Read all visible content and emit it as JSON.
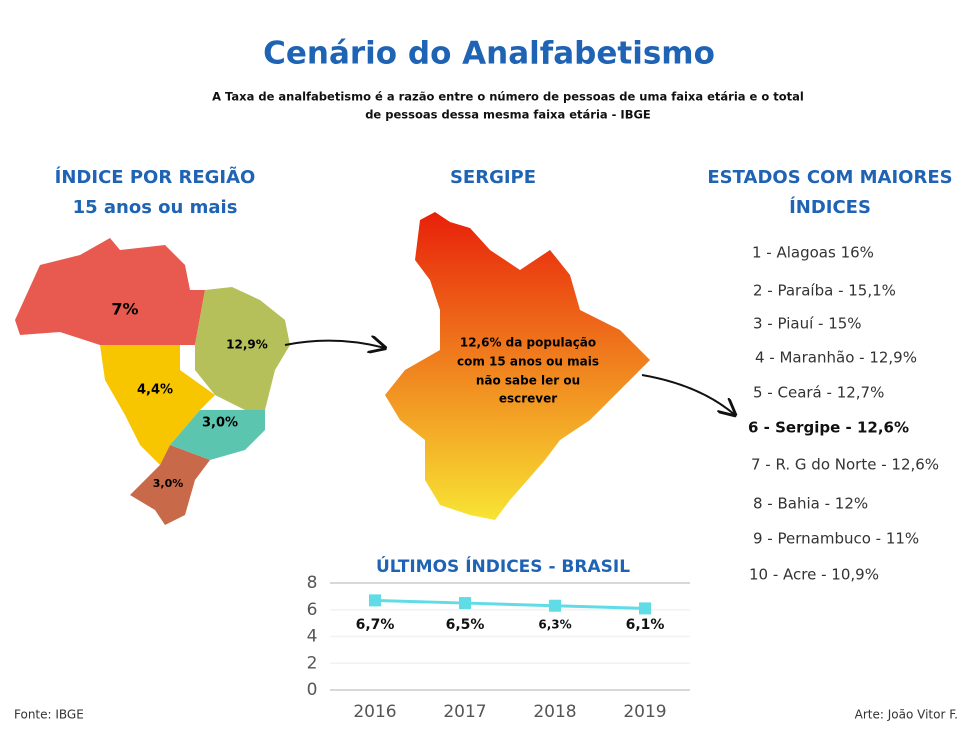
{
  "header": {
    "title": "Cenário do Analfabetismo",
    "subtitle": [
      "A Taxa de analfabetismo é a razão entre o número de pessoas de uma faixa etária e o total",
      "de pessoas dessa mesma faixa etária - IBGE"
    ]
  },
  "regions": {
    "heading": [
      "ÍNDICE POR REGIÃO",
      "15 anos ou mais"
    ],
    "labels": [
      "7%",
      "12,9%",
      "4,4%",
      "3,0%",
      "3,0%"
    ]
  },
  "sergipe": {
    "heading": "SERGIPE",
    "text": [
      "12,6% da população",
      "com 15 anos ou mais",
      "não sabe ler ou",
      "escrever"
    ]
  },
  "ranking": {
    "heading": [
      "ESTADOS COM MAIORES",
      "ÍNDICES"
    ],
    "items": [
      "1 - Alagoas 16%",
      "2 - Paraíba - 15,1%",
      "3 - Piauí - 15%",
      "4 - Maranhão - 12,9%",
      "5 - Ceará - 12,7%",
      "6 - Sergipe - 12,6%",
      "7 - R. G do Norte - 12,6%",
      "8 -  Bahia - 12%",
      "9 - Pernambuco - 11%",
      "10 - Acre - 10,9%"
    ]
  },
  "chart_data": {
    "type": "line",
    "title": "ÚLTIMOS ÍNDICES - BRASIL",
    "categories": [
      "2016",
      "2017",
      "2018",
      "2019"
    ],
    "values": [
      6.7,
      6.5,
      6.3,
      6.1
    ],
    "value_labels": [
      "6,7%",
      "6,5%",
      "6,3%",
      "6,1%"
    ],
    "color": "#5fdce6",
    "ylim": [
      0,
      8
    ],
    "yticks": [
      0,
      2,
      4,
      6,
      8
    ],
    "grid": true
  },
  "footer": {
    "source": "Fonte: IBGE",
    "credit": "Arte: João Vitor F."
  }
}
